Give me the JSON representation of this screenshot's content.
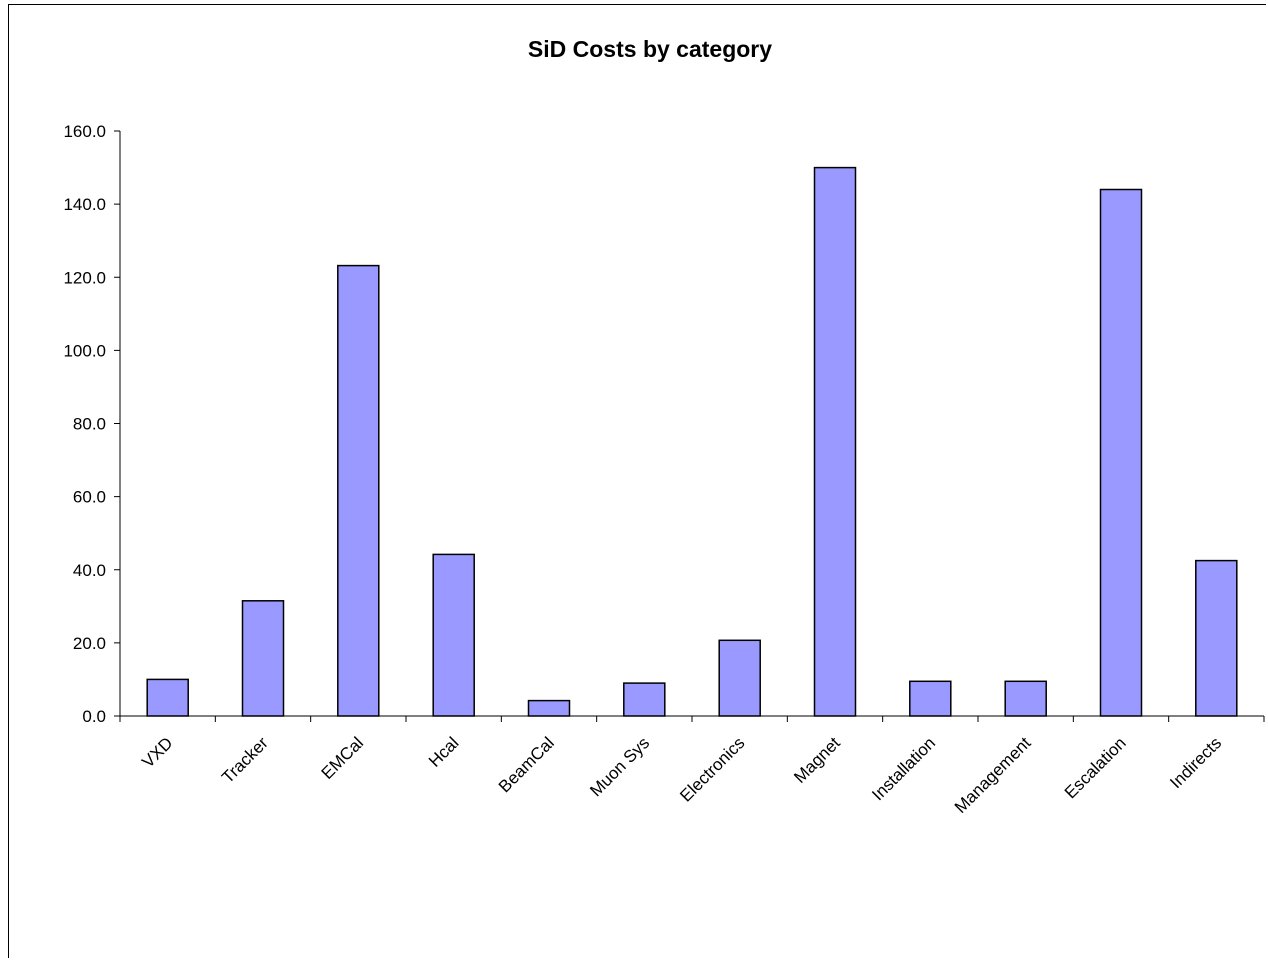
{
  "chart_data": {
    "type": "bar",
    "title": "SiD Costs by category",
    "xlabel": "",
    "ylabel": "",
    "categories": [
      "VXD",
      "Tracker",
      "EMCal",
      "Hcal",
      "BeamCal",
      "Muon Sys",
      "Electronics",
      "Magnet",
      "Installation",
      "Management",
      "Escalation",
      "Indirects"
    ],
    "values": [
      10.0,
      31.5,
      123.2,
      44.2,
      4.2,
      9.0,
      20.7,
      150.0,
      9.5,
      9.5,
      144.0,
      42.5
    ],
    "ylim": [
      0,
      160
    ],
    "yticks": [
      "0.0",
      "20.0",
      "40.0",
      "60.0",
      "80.0",
      "100.0",
      "120.0",
      "140.0",
      "160.0"
    ],
    "grid": false,
    "legend": "none",
    "colors": {
      "bar_fill": "#9999ff",
      "bar_stroke": "#000000",
      "axis": "#000000"
    }
  }
}
